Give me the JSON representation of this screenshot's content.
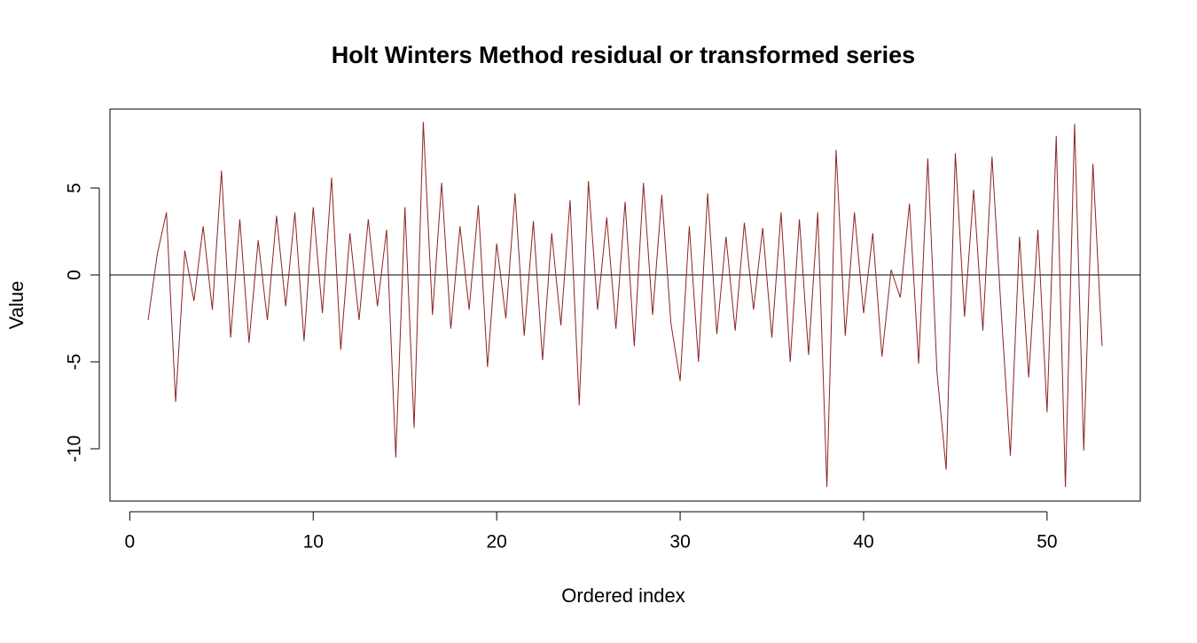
{
  "chart_data": {
    "type": "line",
    "title": "Holt Winters Method residual or transformed series",
    "xlabel": "Ordered index",
    "ylabel": "Value",
    "x": [
      1,
      1.5,
      2,
      2.5,
      3,
      3.5,
      4,
      4.5,
      5,
      5.5,
      6,
      6.5,
      7,
      7.5,
      8,
      8.5,
      9,
      9.5,
      10,
      10.5,
      11,
      11.5,
      12,
      12.5,
      13,
      13.5,
      14,
      14.5,
      15,
      15.5,
      16,
      16.5,
      17,
      17.5,
      18,
      18.5,
      19,
      19.5,
      20,
      20.5,
      21,
      21.5,
      22,
      22.5,
      23,
      23.5,
      24,
      24.5,
      25,
      25.5,
      26,
      26.5,
      27,
      27.5,
      28,
      28.5,
      29,
      29.5,
      30,
      30.5,
      31,
      31.5,
      32,
      32.5,
      33,
      33.5,
      34,
      34.5,
      35,
      35.5,
      36,
      36.5,
      37,
      37.5,
      38,
      38.5,
      39,
      39.5,
      40,
      40.5,
      41,
      41.5,
      42,
      42.5,
      43,
      43.5,
      44,
      44.5,
      45,
      45.5,
      46,
      46.5,
      47,
      47.5,
      48,
      48.5,
      49,
      49.5,
      50,
      50.5,
      51,
      51.5,
      52,
      52.5,
      53
    ],
    "series": [
      {
        "color": "#8b2323",
        "values": [
          -2.6,
          1.2,
          3.6,
          -7.3,
          1.4,
          -1.5,
          2.8,
          -2.0,
          6.0,
          -3.6,
          3.2,
          -3.9,
          2.0,
          -2.6,
          3.4,
          -1.8,
          3.6,
          -3.8,
          3.9,
          -2.2,
          5.6,
          -4.3,
          2.4,
          -2.6,
          3.2,
          -1.8,
          2.6,
          -10.5,
          3.9,
          -8.8,
          8.8,
          -2.3,
          5.3,
          -3.1,
          2.8,
          -2.0,
          4.0,
          -5.3,
          1.8,
          -2.5,
          4.7,
          -3.5,
          3.1,
          -4.9,
          2.4,
          -2.9,
          4.3,
          -7.5,
          5.4,
          -2.0,
          3.3,
          -3.1,
          4.2,
          -4.1,
          5.3,
          -2.3,
          4.6,
          -2.8,
          -6.1,
          2.8,
          -5.0,
          4.7,
          -3.4,
          2.2,
          -3.2,
          3.0,
          -2.0,
          2.7,
          -3.6,
          3.6,
          -5.0,
          3.2,
          -4.6,
          3.6,
          -12.2,
          7.2,
          -3.5,
          3.6,
          -2.2,
          2.4,
          -4.7,
          0.3,
          -1.3,
          4.1,
          -5.1,
          6.7,
          -5.6,
          -11.2,
          7.0,
          -2.4,
          4.9,
          -3.2,
          6.8,
          -2.1,
          -10.4,
          2.2,
          -5.9,
          2.6,
          -7.9,
          8.0,
          -12.2,
          8.7,
          -10.1,
          6.4,
          -4.1
        ]
      }
    ],
    "hline": 0,
    "xlim": [
      -1.08,
      55.08
    ],
    "ylim": [
      -13.01,
      9.54
    ],
    "xticks": [
      0,
      10,
      20,
      30,
      40,
      50
    ],
    "yticks": [
      -10,
      -5,
      0,
      5
    ]
  }
}
